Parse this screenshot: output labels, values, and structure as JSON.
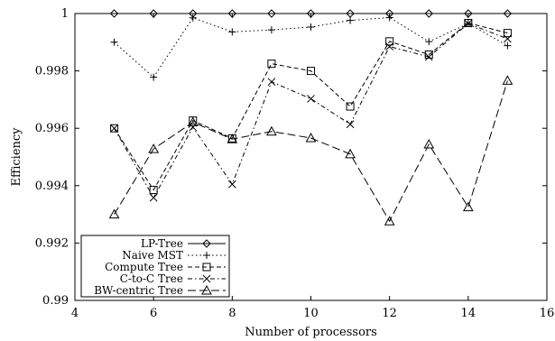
{
  "chart_data": {
    "type": "line",
    "xlabel": "Number of processors",
    "ylabel": "Efficiency",
    "xlim": [
      4,
      16
    ],
    "ylim": [
      0.99,
      1.0
    ],
    "xticks": [
      4,
      6,
      8,
      10,
      12,
      14,
      16
    ],
    "yticks": [
      0.99,
      0.992,
      0.994,
      0.996,
      0.998,
      1
    ],
    "x_tick_labels": [
      "4",
      "6",
      "8",
      "10",
      "12",
      "14",
      "16"
    ],
    "y_tick_labels": [
      "0.99",
      "0.992",
      "0.994",
      "0.996",
      "0.998",
      "1"
    ],
    "grid": false,
    "legend_position": "bottom-left",
    "x": [
      5,
      6,
      7,
      8,
      9,
      10,
      11,
      12,
      13,
      14,
      15
    ],
    "series": [
      {
        "name": "LP-Tree",
        "marker": "diamond",
        "dash": "solid",
        "values": [
          1.0,
          1.0,
          1.0,
          1.0,
          1.0,
          1.0,
          1.0,
          1.0,
          1.0,
          1.0,
          1.0
        ]
      },
      {
        "name": "Naive MST",
        "marker": "plus",
        "dash": "dotted",
        "values": [
          0.999,
          0.99778,
          0.99985,
          0.99936,
          0.99943,
          0.99953,
          0.99976,
          0.99986,
          0.99902,
          0.99965,
          0.99888
        ]
      },
      {
        "name": "Compute Tree",
        "marker": "square",
        "dash": "dashed",
        "values": [
          0.996,
          0.99385,
          0.99627,
          0.99565,
          0.99825,
          0.998,
          0.99676,
          0.99903,
          0.99857,
          0.99967,
          0.99932
        ]
      },
      {
        "name": "C-to-C Tree",
        "marker": "cross",
        "dash": "dash-dot",
        "values": [
          0.996,
          0.99358,
          0.99604,
          0.99405,
          0.99762,
          0.99703,
          0.99614,
          0.99885,
          0.99849,
          0.99965,
          0.99912
        ]
      },
      {
        "name": "BW-centric Tree",
        "marker": "triangle",
        "dash": "long-dash",
        "values": [
          0.993,
          0.99528,
          0.99621,
          0.99562,
          0.99589,
          0.99566,
          0.9951,
          0.99276,
          0.99544,
          0.99325,
          0.99766
        ]
      }
    ]
  }
}
